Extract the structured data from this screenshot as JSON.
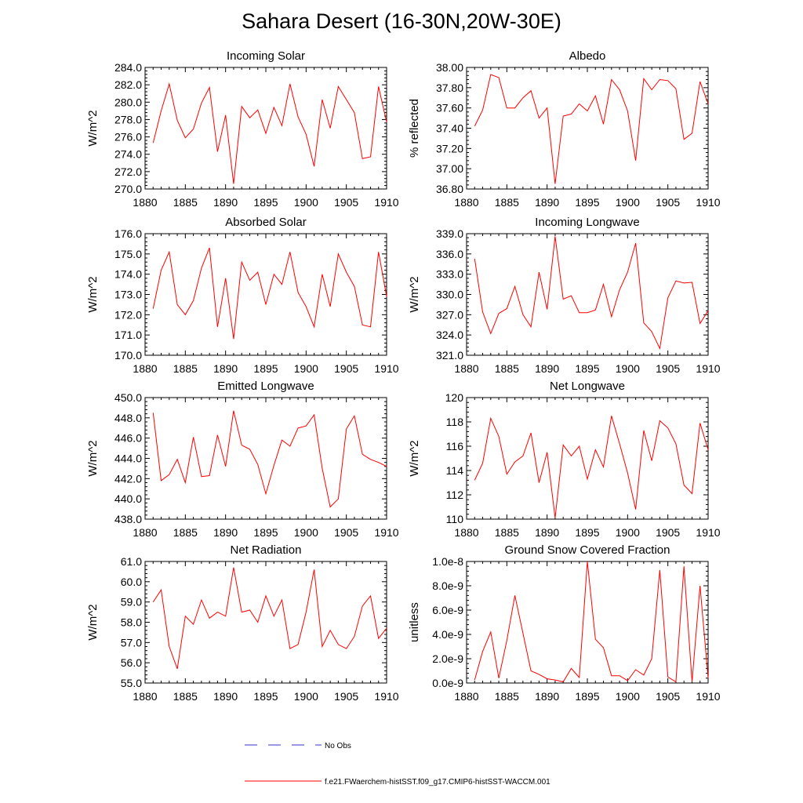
{
  "title": "Sahara Desert (16-30N,20W-30E)",
  "colors": {
    "series": "#ff0000",
    "no_obs": "#3333cc",
    "axis": "#000000"
  },
  "legend": {
    "no_obs_label": "No Obs",
    "model_label": "f.e21.FWaerchem-histSST.f09_g17.CMIP6-histSST-WACCM.001"
  },
  "chart_data": [
    {
      "type": "line",
      "title": "Incoming Solar",
      "ylabel": "W/m^2",
      "xlim": [
        1880,
        1910
      ],
      "ylim": [
        270,
        284
      ],
      "xticks": [
        1880,
        1885,
        1890,
        1895,
        1900,
        1905,
        1910
      ],
      "yticks": [
        "270.0",
        "272.0",
        "274.0",
        "276.0",
        "278.0",
        "280.0",
        "282.0",
        "284.0"
      ],
      "x": [
        1881,
        1882,
        1883,
        1884,
        1885,
        1886,
        1887,
        1888,
        1889,
        1890,
        1891,
        1892,
        1893,
        1894,
        1895,
        1896,
        1897,
        1898,
        1899,
        1900,
        1901,
        1902,
        1903,
        1904,
        1905,
        1906,
        1907,
        1908,
        1909,
        1910
      ],
      "series": [
        {
          "values": [
            275.3,
            279.0,
            282.1,
            277.9,
            275.9,
            276.9,
            279.9,
            281.7,
            274.3,
            278.5,
            270.6,
            279.5,
            278.2,
            279.1,
            276.4,
            279.4,
            277.3,
            282.1,
            278.3,
            276.3,
            272.6,
            280.3,
            277.0,
            281.8,
            280.3,
            278.8,
            273.5,
            273.7,
            281.8,
            277.7
          ]
        }
      ]
    },
    {
      "type": "line",
      "title": "Albedo",
      "ylabel": "% reflected",
      "xlim": [
        1880,
        1910
      ],
      "ylim": [
        36.8,
        38.0
      ],
      "xticks": [
        1880,
        1885,
        1890,
        1895,
        1900,
        1905,
        1910
      ],
      "yticks": [
        "36.80",
        "37.00",
        "37.20",
        "37.40",
        "37.60",
        "37.80",
        "38.00"
      ],
      "x": [
        1881,
        1882,
        1883,
        1884,
        1885,
        1886,
        1887,
        1888,
        1889,
        1890,
        1891,
        1892,
        1893,
        1894,
        1895,
        1896,
        1897,
        1898,
        1899,
        1900,
        1901,
        1902,
        1903,
        1904,
        1905,
        1906,
        1907,
        1908,
        1909,
        1910
      ],
      "series": [
        {
          "values": [
            37.42,
            37.58,
            37.93,
            37.9,
            37.6,
            37.6,
            37.7,
            37.77,
            37.5,
            37.6,
            36.85,
            37.52,
            37.54,
            37.64,
            37.57,
            37.72,
            37.44,
            37.88,
            37.78,
            37.57,
            37.08,
            37.89,
            37.78,
            37.88,
            37.87,
            37.79,
            37.29,
            37.35,
            37.86,
            37.64
          ]
        }
      ]
    },
    {
      "type": "line",
      "title": "Absorbed Solar",
      "ylabel": "W/m^2",
      "xlim": [
        1880,
        1910
      ],
      "ylim": [
        170,
        176
      ],
      "xticks": [
        1880,
        1885,
        1890,
        1895,
        1900,
        1905,
        1910
      ],
      "yticks": [
        "170.0",
        "171.0",
        "172.0",
        "173.0",
        "174.0",
        "175.0",
        "176.0"
      ],
      "x": [
        1881,
        1882,
        1883,
        1884,
        1885,
        1886,
        1887,
        1888,
        1889,
        1890,
        1891,
        1892,
        1893,
        1894,
        1895,
        1896,
        1897,
        1898,
        1899,
        1900,
        1901,
        1902,
        1903,
        1904,
        1905,
        1906,
        1907,
        1908,
        1909,
        1910
      ],
      "series": [
        {
          "values": [
            172.3,
            174.2,
            175.1,
            172.5,
            172.0,
            172.7,
            174.3,
            175.3,
            171.4,
            173.8,
            170.8,
            174.6,
            173.7,
            174.1,
            172.5,
            174.0,
            173.5,
            175.1,
            173.1,
            172.4,
            171.4,
            174.0,
            172.4,
            175.0,
            174.1,
            173.4,
            171.5,
            171.4,
            175.1,
            172.9
          ]
        }
      ]
    },
    {
      "type": "line",
      "title": "Incoming Longwave",
      "ylabel": "W/m^2",
      "xlim": [
        1880,
        1910
      ],
      "ylim": [
        321,
        339
      ],
      "xticks": [
        1880,
        1885,
        1890,
        1895,
        1900,
        1905,
        1910
      ],
      "yticks": [
        "321.0",
        "324.0",
        "327.0",
        "330.0",
        "333.0",
        "336.0",
        "339.0"
      ],
      "x": [
        1881,
        1882,
        1883,
        1884,
        1885,
        1886,
        1887,
        1888,
        1889,
        1890,
        1891,
        1892,
        1893,
        1894,
        1895,
        1896,
        1897,
        1898,
        1899,
        1900,
        1901,
        1902,
        1903,
        1904,
        1905,
        1906,
        1907,
        1908,
        1909,
        1910
      ],
      "series": [
        {
          "values": [
            335.3,
            327.4,
            324.2,
            327.2,
            327.9,
            331.2,
            327.0,
            325.2,
            333.3,
            327.8,
            338.6,
            329.3,
            329.8,
            327.3,
            327.3,
            327.7,
            331.5,
            326.7,
            330.7,
            333.3,
            337.6,
            325.8,
            324.5,
            322.0,
            329.5,
            332.0,
            331.7,
            331.8,
            325.7,
            327.6
          ]
        }
      ]
    },
    {
      "type": "line",
      "title": "Emitted Longwave",
      "ylabel": "W/m^2",
      "xlim": [
        1880,
        1910
      ],
      "ylim": [
        438,
        450
      ],
      "xticks": [
        1880,
        1885,
        1890,
        1895,
        1900,
        1905,
        1910
      ],
      "yticks": [
        "438.0",
        "440.0",
        "442.0",
        "444.0",
        "446.0",
        "448.0",
        "450.0"
      ],
      "x": [
        1881,
        1882,
        1883,
        1884,
        1885,
        1886,
        1887,
        1888,
        1889,
        1890,
        1891,
        1892,
        1893,
        1894,
        1895,
        1896,
        1897,
        1898,
        1899,
        1900,
        1901,
        1902,
        1903,
        1904,
        1905,
        1906,
        1907,
        1908,
        1909,
        1910
      ],
      "series": [
        {
          "values": [
            448.5,
            441.8,
            442.4,
            443.9,
            441.6,
            446.1,
            442.2,
            442.3,
            446.3,
            443.2,
            448.7,
            445.3,
            444.9,
            443.4,
            440.5,
            443.3,
            445.8,
            445.2,
            447.0,
            447.2,
            448.3,
            443.0,
            439.2,
            440.0,
            446.9,
            448.2,
            444.4,
            443.9,
            443.6,
            443.2
          ]
        }
      ]
    },
    {
      "type": "line",
      "title": "Net Longwave",
      "ylabel": "W/m^2",
      "xlim": [
        1880,
        1910
      ],
      "ylim": [
        110,
        120
      ],
      "xticks": [
        1880,
        1885,
        1890,
        1895,
        1900,
        1905,
        1910
      ],
      "yticks": [
        "110",
        "112",
        "114",
        "116",
        "118",
        "120"
      ],
      "x": [
        1881,
        1882,
        1883,
        1884,
        1885,
        1886,
        1887,
        1888,
        1889,
        1890,
        1891,
        1892,
        1893,
        1894,
        1895,
        1896,
        1897,
        1898,
        1899,
        1900,
        1901,
        1902,
        1903,
        1904,
        1905,
        1906,
        1907,
        1908,
        1909,
        1910
      ],
      "series": [
        {
          "values": [
            113.2,
            114.6,
            118.3,
            116.8,
            113.7,
            114.7,
            115.2,
            117.1,
            113.0,
            115.5,
            110.1,
            116.1,
            115.2,
            116.0,
            113.3,
            115.7,
            114.3,
            118.5,
            116.2,
            113.8,
            110.8,
            117.3,
            114.8,
            118.1,
            117.5,
            116.2,
            112.8,
            112.1,
            117.9,
            115.7
          ]
        }
      ]
    },
    {
      "type": "line",
      "title": "Net Radiation",
      "ylabel": "W/m^2",
      "xlim": [
        1880,
        1910
      ],
      "ylim": [
        55,
        61
      ],
      "xticks": [
        1880,
        1885,
        1890,
        1895,
        1900,
        1905,
        1910
      ],
      "yticks": [
        "55.0",
        "56.0",
        "57.0",
        "58.0",
        "59.0",
        "60.0",
        "61.0"
      ],
      "x": [
        1881,
        1882,
        1883,
        1884,
        1885,
        1886,
        1887,
        1888,
        1889,
        1890,
        1891,
        1892,
        1893,
        1894,
        1895,
        1896,
        1897,
        1898,
        1899,
        1900,
        1901,
        1902,
        1903,
        1904,
        1905,
        1906,
        1907,
        1908,
        1909,
        1910
      ],
      "series": [
        {
          "values": [
            59.0,
            59.6,
            56.8,
            55.7,
            58.3,
            57.9,
            59.1,
            58.2,
            58.5,
            58.3,
            60.7,
            58.5,
            58.6,
            58.0,
            59.3,
            58.3,
            59.1,
            56.7,
            56.9,
            58.5,
            60.6,
            56.8,
            57.6,
            56.9,
            56.7,
            57.3,
            58.8,
            59.3,
            57.2,
            57.7
          ]
        }
      ]
    },
    {
      "type": "line",
      "title": "Ground Snow Covered Fraction",
      "ylabel": "unitless",
      "xlim": [
        1880,
        1910
      ],
      "ylim": [
        0,
        1e-08
      ],
      "xticks": [
        1880,
        1885,
        1890,
        1895,
        1900,
        1905,
        1910
      ],
      "yticks": [
        "0.0e-9",
        "2.0e-9",
        "4.0e-9",
        "6.0e-9",
        "8.0e-9",
        "1.0e-8"
      ],
      "x": [
        1881,
        1882,
        1883,
        1884,
        1885,
        1886,
        1887,
        1888,
        1889,
        1890,
        1891,
        1892,
        1893,
        1894,
        1895,
        1896,
        1897,
        1898,
        1899,
        1900,
        1901,
        1902,
        1903,
        1904,
        1905,
        1906,
        1907,
        1908,
        1909,
        1910
      ],
      "series": [
        {
          "values": [
            2.5e-10,
            2.6e-09,
            4.2e-09,
            4e-10,
            3.5e-09,
            7.2e-09,
            4.1e-09,
            1e-09,
            7e-10,
            3.5e-10,
            2.5e-10,
            1e-10,
            1.2e-09,
            4.5e-10,
            1e-08,
            3.6e-09,
            2.9e-09,
            6e-10,
            6e-10,
            2e-10,
            1.1e-09,
            6.5e-10,
            2e-09,
            9.3e-09,
            5e-10,
            1e-10,
            9.6e-09,
            1e-10,
            8e-09,
            4e-10
          ]
        }
      ]
    }
  ]
}
